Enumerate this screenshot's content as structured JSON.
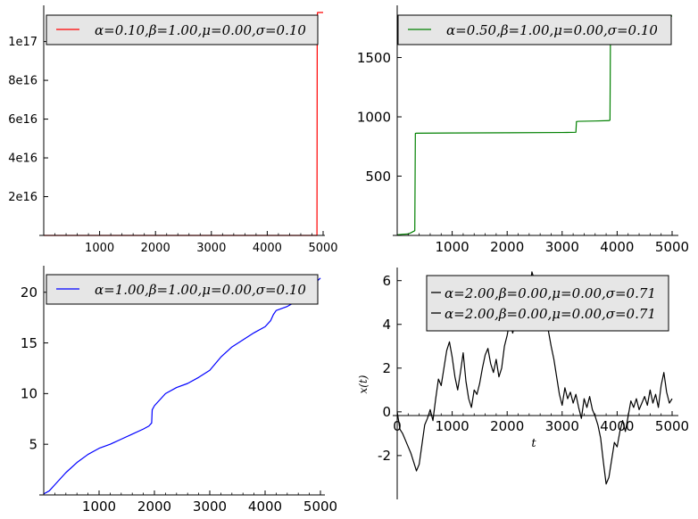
{
  "chart_data": [
    {
      "type": "line",
      "title": "",
      "xlabel": "",
      "ylabel": "",
      "xlim": [
        0,
        5000
      ],
      "ylim": [
        0,
        1.15e+17
      ],
      "x_ticks": [
        1000,
        2000,
        3000,
        4000,
        5000
      ],
      "x_tick_labels": [
        "1000",
        "2000",
        "3000",
        "4000",
        "5000"
      ],
      "y_ticks": [
        2e+16,
        4e+16,
        6e+16,
        8e+16,
        1e+17
      ],
      "y_tick_labels": [
        "2e16",
        "4e16",
        "6e16",
        "8e16",
        "1e17"
      ],
      "grid": false,
      "legend_position": "top-center",
      "series": [
        {
          "name": "α=0.10,β=1.00,μ=0.00,σ=0.10",
          "color": "#ff0000",
          "x": [
            0,
            4890,
            4895,
            4900,
            4950,
            5000
          ],
          "y": [
            0,
            0,
            1.13e+17,
            1.15e+17,
            1.15e+17,
            1.15e+17
          ]
        }
      ]
    },
    {
      "type": "line",
      "title": "",
      "xlabel": "",
      "ylabel": "",
      "xlim": [
        0,
        5000
      ],
      "ylim": [
        0,
        1880
      ],
      "x_ticks": [
        1000,
        2000,
        3000,
        4000,
        5000
      ],
      "x_tick_labels": [
        "1000",
        "2000",
        "3000",
        "4000",
        "5000"
      ],
      "y_ticks": [
        500,
        1000,
        1500
      ],
      "y_tick_labels": [
        "500",
        "1000",
        "1500"
      ],
      "grid": false,
      "legend_position": "top-center",
      "series": [
        {
          "name": "α=0.50,β=1.00,μ=0.00,σ=0.10",
          "color": "#008000",
          "x": [
            0,
            100,
            200,
            260,
            320,
            330,
            350,
            1000,
            2000,
            3000,
            3250,
            3260,
            3300,
            3600,
            3850,
            3870,
            3880,
            4000,
            4500,
            5000
          ],
          "y": [
            5,
            10,
            12,
            25,
            40,
            860,
            862,
            864,
            866,
            868,
            870,
            960,
            962,
            965,
            968,
            972,
            1835,
            1840,
            1845,
            1850
          ]
        }
      ]
    },
    {
      "type": "line",
      "title": "",
      "xlabel": "",
      "ylabel": "",
      "xlim": [
        0,
        5000
      ],
      "ylim": [
        0,
        22
      ],
      "x_ticks": [
        1000,
        2000,
        3000,
        4000,
        5000
      ],
      "x_tick_labels": [
        "1000",
        "2000",
        "3000",
        "4000",
        "5000"
      ],
      "y_ticks": [
        5,
        10,
        15,
        20
      ],
      "y_tick_labels": [
        "5",
        "10",
        "15",
        "20"
      ],
      "grid": false,
      "legend_position": "top-center",
      "series": [
        {
          "name": "α=1.00,β=1.00,μ=0.00,σ=0.10",
          "color": "#0000ff",
          "x": [
            0,
            100,
            200,
            400,
            600,
            800,
            1000,
            1200,
            1400,
            1600,
            1800,
            1900,
            1950,
            1960,
            2000,
            2200,
            2400,
            2600,
            2800,
            3000,
            3200,
            3400,
            3600,
            3800,
            4000,
            4100,
            4150,
            4200,
            4400,
            4600,
            4800,
            5000
          ],
          "y": [
            0.1,
            0.4,
            1.0,
            2.2,
            3.2,
            4.0,
            4.6,
            5.0,
            5.5,
            6.0,
            6.5,
            6.8,
            7.1,
            8.4,
            8.8,
            10.0,
            10.6,
            11.0,
            11.6,
            12.3,
            13.6,
            14.6,
            15.3,
            16.0,
            16.6,
            17.2,
            17.8,
            18.2,
            18.6,
            19.2,
            20.4,
            21.4
          ]
        }
      ]
    },
    {
      "type": "line",
      "title": "",
      "xlabel": "t",
      "ylabel": "x(t)",
      "xlim": [
        0,
        5000
      ],
      "ylim": [
        -3.8,
        6.6
      ],
      "x_ticks": [
        0,
        1000,
        2000,
        3000,
        4000,
        5000
      ],
      "x_tick_labels": [
        "0",
        "1000",
        "2000",
        "3000",
        "4000",
        "5000"
      ],
      "y_ticks": [
        -2,
        0,
        2,
        4,
        6
      ],
      "y_tick_labels": [
        "-2",
        "0",
        "2",
        "4",
        "6"
      ],
      "grid": false,
      "legend_position": "top-center",
      "series": [
        {
          "name": "α=2.00,β=0.00,μ=0.00,σ=0.71",
          "color": "#000000",
          "x": [
            0,
            50,
            100,
            150,
            200,
            250,
            300,
            350,
            400,
            450,
            500,
            550,
            600,
            650,
            700,
            750,
            800,
            850,
            900,
            950,
            1000,
            1050,
            1100,
            1150,
            1200,
            1250,
            1300,
            1350,
            1400,
            1450,
            1500,
            1550,
            1600,
            1650,
            1700,
            1750,
            1800,
            1850,
            1900,
            1950,
            2000,
            2050,
            2100,
            2150,
            2200,
            2250,
            2300,
            2350,
            2400,
            2450,
            2500,
            2550,
            2600,
            2650,
            2700,
            2750,
            2800,
            2850,
            2900,
            2950,
            3000,
            3050,
            3100,
            3150,
            3200,
            3250,
            3300,
            3350,
            3400,
            3450,
            3500,
            3550,
            3600,
            3650,
            3700,
            3750,
            3800,
            3850,
            3900,
            3950,
            4000,
            4050,
            4100,
            4150,
            4200,
            4250,
            4300,
            4350,
            4400,
            4450,
            4500,
            4550,
            4600,
            4650,
            4700,
            4750,
            4800,
            4850,
            4900,
            4950,
            5000
          ],
          "y": [
            0,
            -0.8,
            -1.0,
            -1.3,
            -1.6,
            -1.9,
            -2.3,
            -2.7,
            -2.4,
            -1.5,
            -0.6,
            -0.3,
            0.1,
            -0.4,
            0.6,
            1.5,
            1.2,
            2.0,
            2.8,
            3.2,
            2.5,
            1.6,
            1.0,
            1.8,
            2.7,
            1.4,
            0.6,
            0.2,
            1.0,
            0.8,
            1.3,
            2.0,
            2.6,
            2.9,
            2.2,
            1.8,
            2.4,
            1.6,
            2.0,
            3.0,
            3.5,
            4.2,
            3.6,
            4.1,
            3.9,
            4.6,
            5.2,
            5.8,
            5.4,
            6.4,
            6.0,
            5.3,
            4.6,
            4.1,
            4.7,
            3.7,
            3.0,
            2.4,
            1.6,
            0.8,
            0.3,
            1.1,
            0.6,
            0.9,
            0.4,
            0.8,
            0.2,
            -0.3,
            0.6,
            0.2,
            0.7,
            0.1,
            -0.2,
            -0.6,
            -1.2,
            -2.3,
            -3.3,
            -3.0,
            -2.2,
            -1.4,
            -1.6,
            -0.9,
            -0.4,
            -0.9,
            -0.2,
            0.5,
            0.2,
            0.6,
            0.1,
            0.4,
            0.7,
            0.3,
            1.0,
            0.4,
            0.8,
            0.2,
            1.2,
            1.8,
            0.9,
            0.4,
            0.6
          ]
        },
        {
          "name": "α=2.00,β=0.00,μ=0.00,σ=0.71",
          "color": "#000000",
          "x": [],
          "y": []
        }
      ]
    }
  ]
}
